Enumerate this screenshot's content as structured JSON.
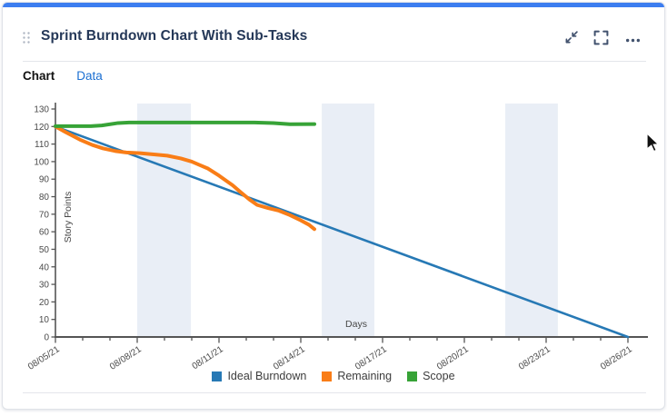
{
  "header": {
    "title": "Sprint Burndown Chart With Sub-Tasks",
    "icons": [
      "drag-handle",
      "collapse",
      "fullscreen",
      "more-options"
    ]
  },
  "tabs": [
    {
      "label": "Chart",
      "active": true
    },
    {
      "label": "Data",
      "active": false
    }
  ],
  "colors": {
    "accent_top_bar": "#3c7df0",
    "title_text": "#253858",
    "icon": "#42526e",
    "inactive_tab_link": "#1b6fd2",
    "band": "#e9eef6",
    "axis": "#555555"
  },
  "chart_data": {
    "type": "line",
    "title": "",
    "xlabel": "Days",
    "ylabel": "Story Points",
    "ylim": [
      0,
      130
    ],
    "x_range_days": [
      0,
      21
    ],
    "x_start_date": "08/05/21",
    "x_end_date": "08/26/21",
    "xtick_label_every_days": 3,
    "xtick_labels": [
      "08/05/21",
      "08/08/21",
      "08/11/21",
      "08/14/21",
      "08/17/21",
      "08/20/21",
      "08/23/21",
      "08/26/21"
    ],
    "ytick_labels": [
      "0",
      "10",
      "20",
      "30",
      "40",
      "50",
      "60",
      "70",
      "80",
      "90",
      "100",
      "110",
      "120",
      "130"
    ],
    "grid": false,
    "legend_position": "bottom",
    "band_color": "#e9eef6",
    "axis_color": "#555555",
    "weekend_bands_days": [
      [
        3.0,
        4.97
      ],
      [
        9.77,
        11.7
      ],
      [
        16.5,
        18.43
      ]
    ],
    "series": [
      {
        "name": "Ideal Burndown",
        "color": "#2779b5",
        "width": 2.6,
        "points_day_value": [
          [
            0,
            120
          ],
          [
            21,
            0
          ]
        ]
      },
      {
        "name": "Remaining",
        "color": "#f97d17",
        "width": 4,
        "points_day_value": [
          [
            0,
            120
          ],
          [
            0.35,
            117
          ],
          [
            0.9,
            112.5
          ],
          [
            1.35,
            109.5
          ],
          [
            1.75,
            107.5
          ],
          [
            2.2,
            106
          ],
          [
            2.6,
            105.2
          ],
          [
            3.1,
            104.8
          ],
          [
            3.7,
            104
          ],
          [
            4.1,
            103.4
          ],
          [
            4.6,
            101.8
          ],
          [
            5.0,
            100
          ],
          [
            5.3,
            98
          ],
          [
            5.6,
            96
          ],
          [
            6.0,
            92
          ],
          [
            6.5,
            86.5
          ],
          [
            6.8,
            82.5
          ],
          [
            7.15,
            78
          ],
          [
            7.4,
            75.3
          ],
          [
            7.8,
            73.5
          ],
          [
            8.2,
            72
          ],
          [
            8.6,
            69.5
          ],
          [
            9.0,
            66.5
          ],
          [
            9.3,
            64
          ],
          [
            9.5,
            61.5
          ]
        ]
      },
      {
        "name": "Scope",
        "color": "#37a337",
        "width": 4,
        "points_day_value": [
          [
            0,
            120.2
          ],
          [
            1.3,
            120.2
          ],
          [
            1.7,
            120.6
          ],
          [
            2.3,
            122
          ],
          [
            2.7,
            122.3
          ],
          [
            7.3,
            122.3
          ],
          [
            8.0,
            122
          ],
          [
            8.6,
            121.3
          ],
          [
            9.5,
            121.4
          ]
        ]
      }
    ]
  }
}
